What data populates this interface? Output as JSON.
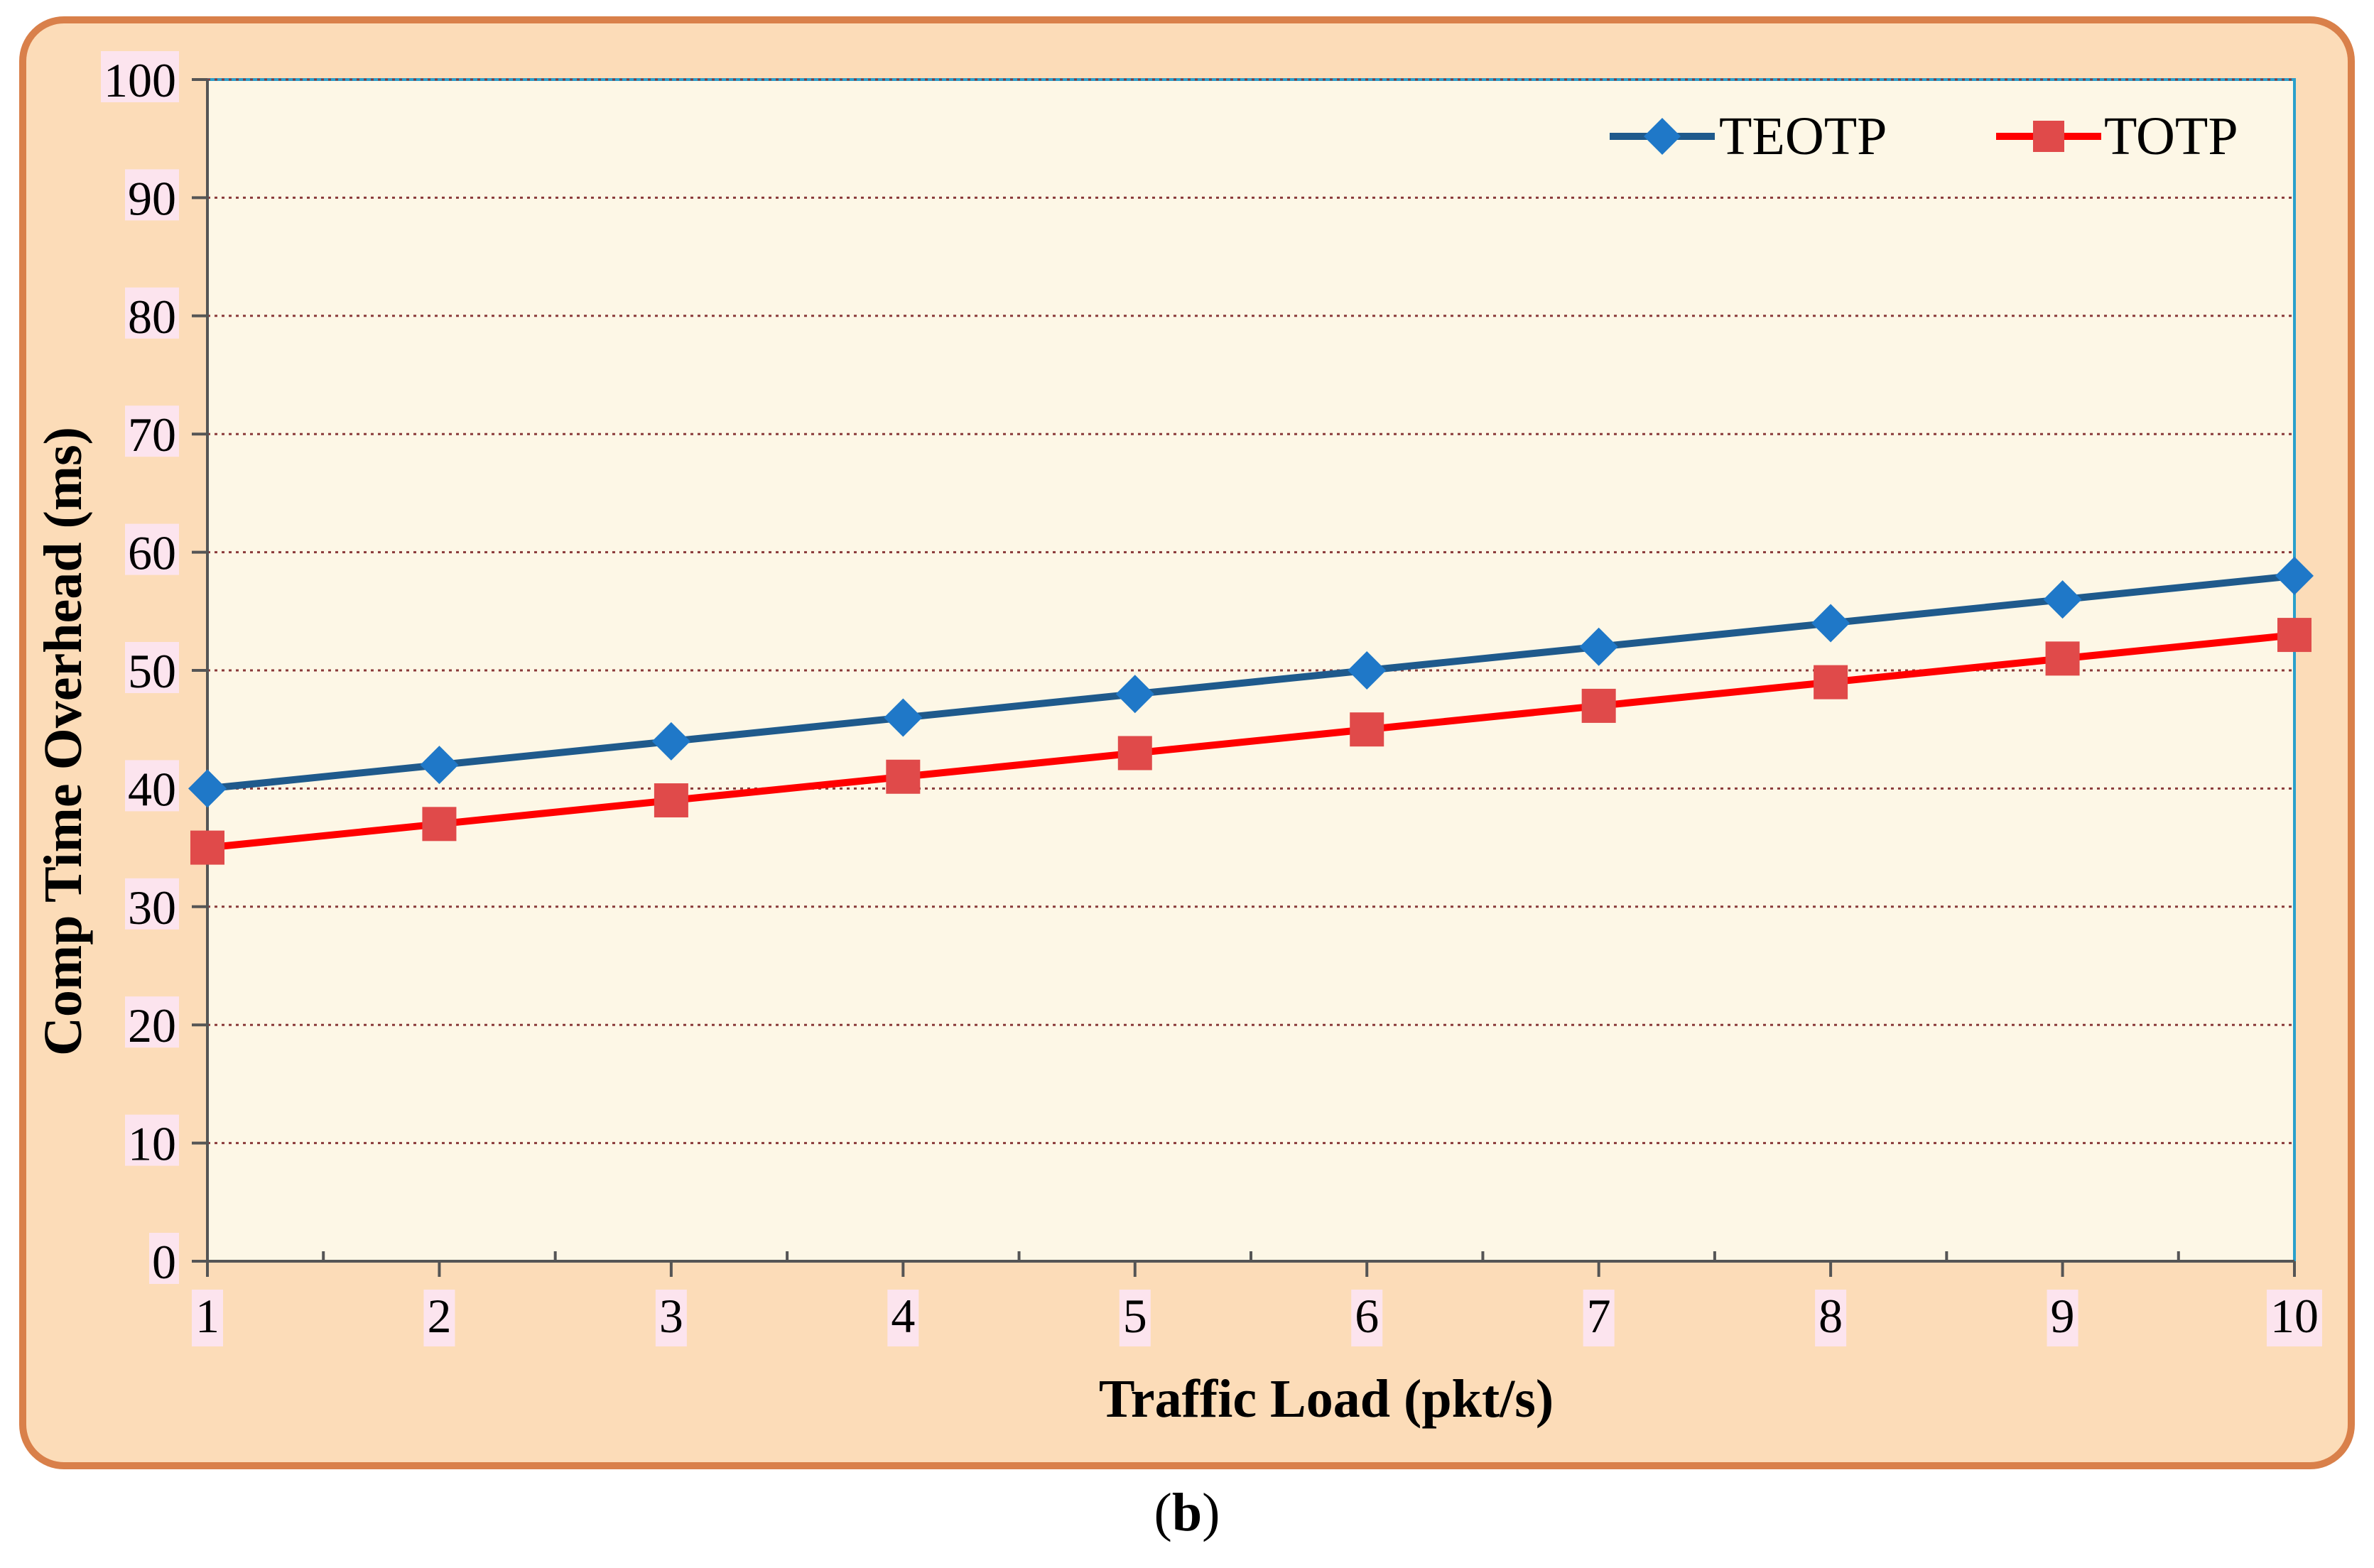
{
  "chart_data": {
    "type": "line",
    "x": [
      1,
      2,
      3,
      4,
      5,
      6,
      7,
      8,
      9,
      10
    ],
    "series": [
      {
        "name": "TEOTP",
        "values": [
          40,
          42,
          44,
          46,
          48,
          50,
          52,
          54,
          56,
          58
        ],
        "color": "#1f5a8c",
        "marker_color": "#1f78c8",
        "marker": "diamond"
      },
      {
        "name": "TOTP",
        "values": [
          35,
          37,
          39,
          41,
          43,
          45,
          47,
          49,
          51,
          53
        ],
        "color": "#ff0000",
        "marker_color": "#e04a4a",
        "marker": "square"
      }
    ],
    "xlabel": "Traffic Load (pkt/s)",
    "ylabel": "Comp Time Overhead (ms)",
    "ylim": [
      0,
      100
    ],
    "xlim": [
      1,
      10
    ],
    "yticks": [
      0,
      10,
      20,
      30,
      40,
      50,
      60,
      70,
      80,
      90,
      100
    ],
    "xticks": [
      1,
      2,
      3,
      4,
      5,
      6,
      7,
      8,
      9,
      10
    ],
    "grid": true,
    "legend_position": "top-right",
    "colors": {
      "frame_fill": "#fcdcb8",
      "frame_stroke": "#d9804a",
      "plot_fill": "#fdf7e6",
      "plot_border": "#2aa0cc",
      "grid": "#8a3a3a",
      "label_bg": "#fce4ee"
    }
  },
  "caption": {
    "open": "(",
    "letter": "b",
    "close": ")"
  }
}
